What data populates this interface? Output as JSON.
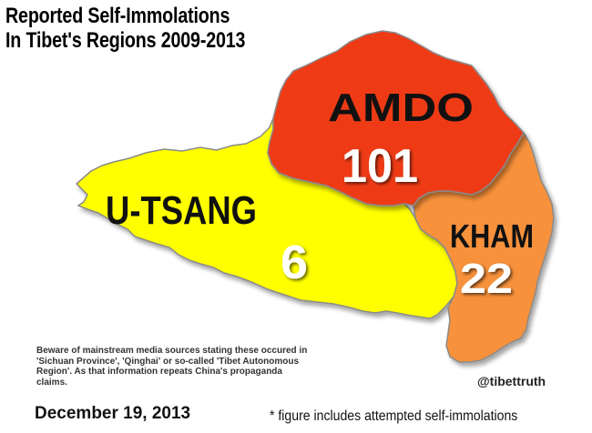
{
  "title": {
    "line1": "Reported Self-Immolations",
    "line2": "In Tibet's Regions 2009-2013"
  },
  "regions": [
    {
      "name": "AMDO",
      "count": "101",
      "color": "#ee3a18"
    },
    {
      "name": "KHAM",
      "count": "22",
      "color": "#f7913a"
    },
    {
      "name": "U-TSANG",
      "count": "6",
      "color": "#ffff00"
    }
  ],
  "warning_text": "Beware of mainstream media sources stating these occured in 'Sichuan Province', 'Qinghai' or so-called 'Tibet Autonomous Region'. As that information repeats China's propaganda claims.",
  "handle": "@tibettruth",
  "date": "December 19, 2013",
  "footnote": "* figure includes attempted self-immolations",
  "colors": {
    "outline": "#8a8a8a",
    "number_text": "#ffffff",
    "label_text": "#111111"
  }
}
